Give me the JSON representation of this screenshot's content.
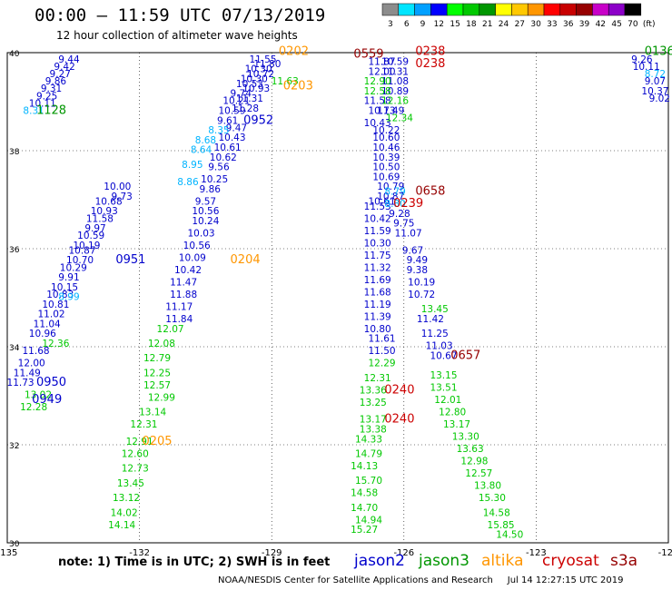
{
  "title": "00:00 – 11:59 UTC 07/13/2019",
  "subtitle": "12 hour collection of altimeter wave heights",
  "scale": {
    "labels": [
      "3",
      "6",
      "9",
      "12",
      "15",
      "18",
      "21",
      "24",
      "27",
      "30",
      "33",
      "36",
      "39",
      "42",
      "45",
      "70",
      "(ft)"
    ],
    "colors": [
      "#8c8c8c",
      "#00e5ff",
      "#00a0ff",
      "#0000ff",
      "#00ff00",
      "#00c800",
      "#009600",
      "#ffff00",
      "#ffc800",
      "#ff9600",
      "#ff0000",
      "#c80000",
      "#960000",
      "#c800c8",
      "#8c00c8",
      "#000000"
    ]
  },
  "note": "note:  1) Time is in UTC;  2) SWH is in feet",
  "legend": [
    {
      "name": "jason2",
      "color": "#0000cc"
    },
    {
      "name": "jason3",
      "color": "#009600"
    },
    {
      "name": "altika",
      "color": "#ff9600"
    },
    {
      "name": "cryosat",
      "color": "#cc0000"
    },
    {
      "name": "s3a",
      "color": "#960000"
    }
  ],
  "credit": "NOAA/NESDIS Center for Satellite Applications and Research     Jul 14 12:27:15 UTC 2019",
  "chart_data": {
    "type": "scatter",
    "xlabel": "",
    "ylabel": "",
    "xlim": [
      -135,
      -120
    ],
    "ylim": [
      30,
      40
    ],
    "xticks": [
      -135,
      -132,
      -129,
      -126,
      -123,
      -120
    ],
    "xtick_labels": [
      "-135",
      "-132",
      "-129",
      "-126",
      "-123",
      "-120"
    ],
    "yticks": [
      40,
      38,
      36,
      34,
      32,
      30
    ],
    "ytick_labels": [
      "40",
      "38",
      "36",
      "34",
      "32",
      "30"
    ],
    "grid": true,
    "series": [
      {
        "name": "jason2",
        "color": "#0000cc",
        "points": [
          [
            -133.5,
            39.95,
            "9.78"
          ],
          [
            -133.6,
            39.8,
            "9.44"
          ],
          [
            -133.7,
            39.65,
            "9.42"
          ],
          [
            -133.8,
            39.5,
            "9.27"
          ],
          [
            -133.9,
            39.35,
            "9.86"
          ],
          [
            -134.0,
            39.2,
            "9.31"
          ],
          [
            -134.1,
            39.05,
            "9.25"
          ],
          [
            -134.2,
            38.9,
            "10.11"
          ],
          [
            -129.1,
            39.95,
            "11.85"
          ],
          [
            -129.2,
            39.8,
            "11.55"
          ],
          [
            -129.1,
            39.7,
            "11.80"
          ],
          [
            -129.3,
            39.6,
            "10.30"
          ],
          [
            -129.25,
            39.5,
            "10.72"
          ],
          [
            -129.4,
            39.4,
            "10.30"
          ],
          [
            -129.5,
            39.3,
            "10.53"
          ],
          [
            -129.35,
            39.2,
            "10.93"
          ],
          [
            -129.7,
            39.1,
            "9.74"
          ],
          [
            -129.5,
            39.0,
            "11.31"
          ],
          [
            -129.8,
            38.95,
            "10.21"
          ],
          [
            -129.6,
            38.8,
            "11.28"
          ],
          [
            -129.9,
            38.75,
            "10.59"
          ],
          [
            -130.0,
            38.55,
            "9.61"
          ],
          [
            -129.8,
            38.4,
            "9.47"
          ],
          [
            -129.9,
            38.2,
            "10.43"
          ],
          [
            -130.0,
            38.0,
            "10.61"
          ],
          [
            -130.1,
            37.8,
            "10.62"
          ],
          [
            -130.2,
            37.6,
            "9.56"
          ],
          [
            -130.3,
            37.35,
            "10.25"
          ],
          [
            -130.4,
            37.15,
            "9.86"
          ],
          [
            -130.5,
            36.9,
            "9.57"
          ],
          [
            -130.5,
            36.7,
            "10.56"
          ],
          [
            -130.5,
            36.5,
            "10.24"
          ],
          [
            -130.6,
            36.25,
            "10.03"
          ],
          [
            -130.7,
            36.0,
            "10.56"
          ],
          [
            -130.8,
            35.75,
            "10.09"
          ],
          [
            -130.9,
            35.5,
            "10.42"
          ],
          [
            -131.0,
            35.25,
            "11.47"
          ],
          [
            -131.0,
            35.0,
            "11.88"
          ],
          [
            -131.1,
            34.75,
            "11.17"
          ],
          [
            -131.1,
            34.5,
            "11.84"
          ],
          [
            -126.2,
            39.95,
            "10.52"
          ],
          [
            -126.5,
            39.75,
            "11.87"
          ],
          [
            -126.2,
            39.75,
            "10.59"
          ],
          [
            -126.5,
            39.55,
            "12.00"
          ],
          [
            -126.2,
            39.55,
            "11.31"
          ],
          [
            -126.2,
            39.35,
            "11.08"
          ],
          [
            -126.2,
            39.15,
            "10.89"
          ],
          [
            -126.6,
            38.95,
            "11.58"
          ],
          [
            -126.3,
            38.75,
            "11.49"
          ],
          [
            -126.5,
            38.75,
            "10.73"
          ],
          [
            -126.6,
            38.5,
            "10.43"
          ],
          [
            -126.4,
            38.35,
            "10.22"
          ],
          [
            -126.4,
            38.2,
            "10.60"
          ],
          [
            -126.4,
            38.0,
            "10.46"
          ],
          [
            -126.4,
            37.8,
            "10.39"
          ],
          [
            -126.4,
            37.6,
            "10.50"
          ],
          [
            -126.4,
            37.4,
            "10.69"
          ],
          [
            -126.3,
            37.2,
            "10.79"
          ],
          [
            -126.3,
            37.0,
            "10.87"
          ],
          [
            -126.5,
            36.9,
            "10.61"
          ],
          [
            -126.6,
            36.8,
            "11.53"
          ],
          [
            -126.1,
            36.65,
            "9.28"
          ],
          [
            -126.6,
            36.55,
            "10.42"
          ],
          [
            -126.0,
            36.45,
            "9.75"
          ],
          [
            -126.6,
            36.3,
            "11.59"
          ],
          [
            -125.9,
            36.25,
            "11.07"
          ],
          [
            -126.6,
            36.05,
            "10.30"
          ],
          [
            -125.8,
            35.9,
            "9.67"
          ],
          [
            -126.6,
            35.8,
            "11.75"
          ],
          [
            -125.7,
            35.7,
            "9.49"
          ],
          [
            -126.6,
            35.55,
            "11.32"
          ],
          [
            -125.7,
            35.5,
            "9.38"
          ],
          [
            -126.6,
            35.3,
            "11.69"
          ],
          [
            -125.6,
            35.25,
            "10.19"
          ],
          [
            -126.6,
            35.05,
            "11.68"
          ],
          [
            -125.6,
            35.0,
            "10.72"
          ],
          [
            -126.6,
            34.8,
            "11.19"
          ],
          [
            -126.6,
            34.55,
            "11.39"
          ],
          [
            -126.6,
            34.3,
            "10.80"
          ],
          [
            -125.4,
            34.5,
            "11.42"
          ],
          [
            -126.5,
            34.1,
            "11.61"
          ],
          [
            -125.3,
            34.2,
            "11.25"
          ],
          [
            -126.5,
            33.85,
            "11.50"
          ],
          [
            -125.2,
            33.95,
            "11.03"
          ],
          [
            -125.1,
            33.75,
            "10.67"
          ],
          [
            -120.6,
            39.95,
            "10.65"
          ],
          [
            -120.6,
            39.8,
            "9.26"
          ],
          [
            -120.5,
            39.65,
            "10.11"
          ],
          [
            -120.3,
            39.35,
            "9.07"
          ],
          [
            -120.3,
            39.15,
            "10.37"
          ],
          [
            -120.2,
            39.0,
            "9.02"
          ],
          [
            -120.1,
            38.85,
            "10.06"
          ],
          [
            -132.4,
            37.0,
            "9.73"
          ],
          [
            -132.5,
            37.2,
            "10.00"
          ],
          [
            -132.7,
            36.9,
            "10.68"
          ],
          [
            -132.8,
            36.7,
            "10.93"
          ],
          [
            -132.9,
            36.55,
            "11.58"
          ],
          [
            -133.0,
            36.35,
            "9.97"
          ],
          [
            -133.1,
            36.2,
            "10.59"
          ],
          [
            -133.2,
            36.0,
            "10.19"
          ],
          [
            -133.3,
            35.9,
            "10.87"
          ],
          [
            -133.35,
            35.7,
            "10.70"
          ],
          [
            -133.5,
            35.55,
            "10.29"
          ],
          [
            -133.6,
            35.35,
            "9.91"
          ],
          [
            -133.7,
            35.15,
            "10.15"
          ],
          [
            -133.8,
            35.0,
            "10.83"
          ],
          [
            -133.9,
            34.8,
            "10.81"
          ],
          [
            -134.0,
            34.6,
            "11.02"
          ],
          [
            -134.1,
            34.4,
            "11.04"
          ],
          [
            -134.2,
            34.2,
            "10.96"
          ],
          [
            -134.35,
            33.85,
            "11.68"
          ],
          [
            -134.45,
            33.6,
            "12.00"
          ],
          [
            -134.55,
            33.4,
            "11.49"
          ],
          [
            -134.7,
            33.2,
            "11.73"
          ]
        ]
      },
      {
        "name": "jason3",
        "color": "#00c800",
        "points": [
          [
            -128.8,
            39.95,
            "12.73"
          ],
          [
            -128.7,
            39.35,
            "11.63"
          ],
          [
            -126.6,
            39.35,
            "12.90"
          ],
          [
            -126.6,
            39.15,
            "12.58"
          ],
          [
            -126.2,
            38.95,
            "12.16"
          ],
          [
            -126.1,
            38.6,
            "12.34"
          ],
          [
            -131.3,
            34.3,
            "12.07"
          ],
          [
            -131.5,
            34.0,
            "12.08"
          ],
          [
            -131.6,
            33.7,
            "12.79"
          ],
          [
            -131.6,
            33.4,
            "12.25"
          ],
          [
            -131.6,
            33.15,
            "12.57"
          ],
          [
            -131.5,
            32.9,
            "12.99"
          ],
          [
            -131.7,
            32.6,
            "13.14"
          ],
          [
            -131.9,
            32.35,
            "12.31"
          ],
          [
            -132.0,
            32.0,
            "12.91"
          ],
          [
            -132.1,
            31.75,
            "12.60"
          ],
          [
            -132.1,
            31.45,
            "12.73"
          ],
          [
            -132.2,
            31.15,
            "13.45"
          ],
          [
            -132.3,
            30.85,
            "13.12"
          ],
          [
            -132.35,
            30.55,
            "14.02"
          ],
          [
            -132.4,
            30.3,
            "14.14"
          ],
          [
            -126.5,
            33.6,
            "12.29"
          ],
          [
            -126.6,
            33.3,
            "12.31"
          ],
          [
            -126.7,
            33.05,
            "13.36"
          ],
          [
            -126.7,
            32.8,
            "13.25"
          ],
          [
            -126.7,
            32.45,
            "13.17"
          ],
          [
            -126.7,
            32.25,
            "13.38"
          ],
          [
            -126.8,
            32.05,
            "14.33"
          ],
          [
            -126.8,
            31.75,
            "14.79"
          ],
          [
            -126.9,
            31.5,
            "14.13"
          ],
          [
            -126.8,
            31.2,
            "15.70"
          ],
          [
            -126.9,
            30.95,
            "14.58"
          ],
          [
            -126.9,
            30.65,
            "14.70"
          ],
          [
            -126.8,
            30.4,
            "14.94"
          ],
          [
            -126.9,
            30.2,
            "15.27"
          ],
          [
            -125.1,
            33.35,
            "13.15"
          ],
          [
            -125.1,
            33.1,
            "13.51"
          ],
          [
            -125.0,
            32.85,
            "12.01"
          ],
          [
            -124.9,
            32.6,
            "12.80"
          ],
          [
            -124.8,
            32.35,
            "13.17"
          ],
          [
            -124.6,
            32.1,
            "13.30"
          ],
          [
            -124.5,
            31.85,
            "13.63"
          ],
          [
            -124.4,
            31.6,
            "12.98"
          ],
          [
            -124.3,
            31.35,
            "12.57"
          ],
          [
            -124.1,
            31.1,
            "13.80"
          ],
          [
            -124.0,
            30.85,
            "15.30"
          ],
          [
            -123.9,
            30.55,
            "14.58"
          ],
          [
            -123.8,
            30.3,
            "15.85"
          ],
          [
            -123.6,
            30.1,
            "14.50"
          ],
          [
            -134.3,
            32.95,
            "13.02"
          ],
          [
            -134.4,
            32.7,
            "12.28"
          ],
          [
            -133.9,
            34.0,
            "12.36"
          ],
          [
            -125.3,
            34.7,
            "13.45"
          ]
        ]
      },
      {
        "name": "altika",
        "color": "#00b4ff",
        "points": [
          [
            -134.4,
            38.75,
            "8.31"
          ],
          [
            -130.2,
            38.35,
            "8.35"
          ],
          [
            -130.5,
            38.15,
            "8.68"
          ],
          [
            -130.6,
            37.95,
            "8.64"
          ],
          [
            -130.8,
            37.65,
            "8.95"
          ],
          [
            -130.9,
            37.3,
            "8.86"
          ],
          [
            -133.6,
            34.95,
            "8.99"
          ],
          [
            -126.2,
            36.85,
            "8.80"
          ],
          [
            -126.2,
            37.1,
            "8.79"
          ],
          [
            -120.1,
            38.7,
            "8.5"
          ],
          [
            -120.3,
            39.5,
            "8.72"
          ]
        ]
      }
    ],
    "time_labels": [
      {
        "text": "1128",
        "color": "#009600",
        "x": -134.0,
        "y": 38.75
      },
      {
        "text": "0202",
        "color": "#ff9600",
        "x": -128.5,
        "y": 39.95
      },
      {
        "text": "0559",
        "color": "#960000",
        "x": -126.8,
        "y": 39.9
      },
      {
        "text": "0238",
        "color": "#cc0000",
        "x": -125.4,
        "y": 39.95
      },
      {
        "text": "0238",
        "color": "#cc0000",
        "x": -125.4,
        "y": 39.7
      },
      {
        "text": "0203",
        "color": "#ff9600",
        "x": -128.4,
        "y": 39.25
      },
      {
        "text": "0952",
        "color": "#0000cc",
        "x": -129.3,
        "y": 38.55
      },
      {
        "text": "0136",
        "color": "#009600",
        "x": -120.2,
        "y": 39.95
      },
      {
        "text": "0658",
        "color": "#960000",
        "x": -125.4,
        "y": 37.1
      },
      {
        "text": "0239",
        "color": "#cc0000",
        "x": -125.9,
        "y": 36.85
      },
      {
        "text": "0951",
        "color": "#0000cc",
        "x": -132.2,
        "y": 35.7
      },
      {
        "text": "0204",
        "color": "#ff9600",
        "x": -129.6,
        "y": 35.7
      },
      {
        "text": "0950",
        "color": "#0000cc",
        "x": -134.0,
        "y": 33.2
      },
      {
        "text": "0949",
        "color": "#0000cc",
        "x": -134.1,
        "y": 32.85
      },
      {
        "text": "0657",
        "color": "#960000",
        "x": -124.6,
        "y": 33.75
      },
      {
        "text": "0240",
        "color": "#cc0000",
        "x": -126.1,
        "y": 33.05
      },
      {
        "text": "0240",
        "color": "#cc0000",
        "x": -126.1,
        "y": 32.45
      },
      {
        "text": "0205",
        "color": "#ff9600",
        "x": -131.6,
        "y": 32.0
      }
    ]
  }
}
